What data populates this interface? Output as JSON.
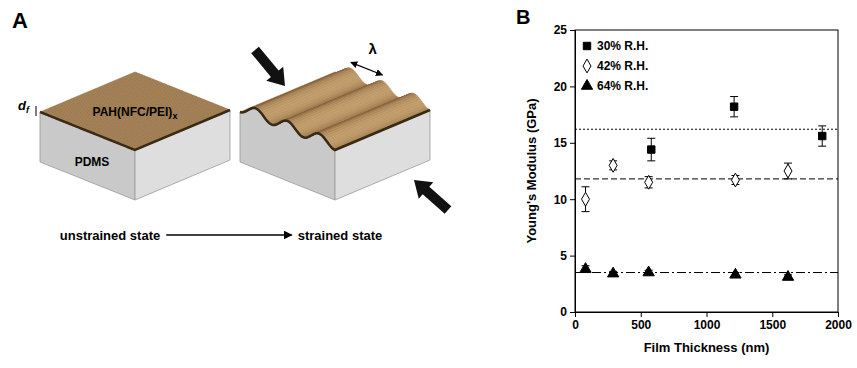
{
  "figure": {
    "panel_labels": [
      "A",
      "B"
    ]
  },
  "diagram": {
    "thickness_label": "d",
    "thickness_subscript": "f",
    "film_label": "PAH(NFC/PEI)",
    "film_subscript": "x",
    "substrate_label": "PDMS",
    "states": [
      "unstrained state",
      "strained state"
    ],
    "wavelength_label": "λ"
  },
  "chart_data": {
    "type": "scatter",
    "x_label": "Film Thickness (nm)",
    "y_label": "Young's Modulus (GPa)",
    "xlim": [
      0,
      2000
    ],
    "xticks": [
      0,
      500,
      1000,
      1500,
      2000
    ],
    "ylim": [
      0,
      25
    ],
    "yticks": [
      0,
      5,
      10,
      15,
      20,
      25
    ],
    "grid": false,
    "legend": "upper left",
    "series": [
      {
        "name": "30% R.H.",
        "marker": "square",
        "color": "#000000",
        "x": [
          580,
          1210,
          1880
        ],
        "values": [
          14.4,
          18.2,
          15.6
        ],
        "errors": [
          1.0,
          0.9,
          0.9
        ],
        "mean": 16.2,
        "line_style": "dotted"
      },
      {
        "name": "42% R.H.",
        "marker": "diamond-open",
        "color": "#000000",
        "x": [
          80,
          290,
          560,
          1220,
          1620
        ],
        "values": [
          10.0,
          13.0,
          11.5,
          11.7,
          12.5
        ],
        "errors": [
          1.1,
          0.4,
          0.5,
          0.4,
          0.7
        ],
        "mean": 11.8,
        "line_style": "dashed"
      },
      {
        "name": "64% R.H.",
        "marker": "triangle",
        "color": "#000000",
        "x": [
          80,
          290,
          560,
          1220,
          1620
        ],
        "values": [
          3.8,
          3.4,
          3.5,
          3.3,
          3.1
        ],
        "errors": [
          0.3,
          0.2,
          0.2,
          0.2,
          0.2
        ],
        "mean": 3.5,
        "line_style": "dashdot"
      }
    ]
  }
}
